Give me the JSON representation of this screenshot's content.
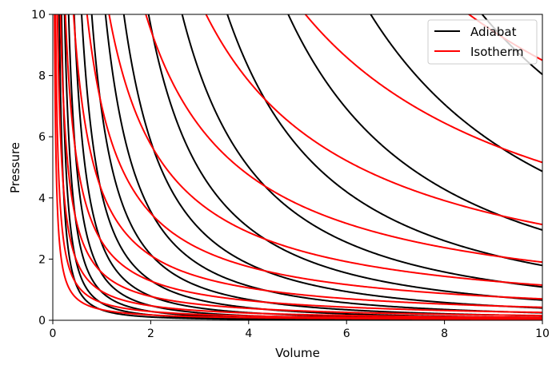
{
  "chart_data": {
    "type": "line",
    "title": "",
    "xlabel": "Volume",
    "ylabel": "Pressure",
    "xlim": [
      0,
      10
    ],
    "ylim": [
      0,
      10
    ],
    "xticks": [
      0,
      2,
      4,
      6,
      8,
      10
    ],
    "yticks": [
      0,
      2,
      4,
      6,
      8,
      10
    ],
    "grid": false,
    "legend": {
      "placement": "top-right",
      "entries": [
        {
          "label": "Adiabat",
          "color": "#000000"
        },
        {
          "label": "Isotherm",
          "color": "#ff0000"
        }
      ]
    },
    "series": [
      {
        "name": "Adiabat",
        "color": "#000000",
        "formula": "P = C / V^gamma",
        "gamma": 1.6667,
        "constants": [
          373,
          226,
          137,
          83.2,
          50.5,
          30.6,
          18.6,
          11.3,
          6.83,
          4.14,
          2.51,
          1.52,
          0.925,
          0.561,
          0.34
        ]
      },
      {
        "name": "Isotherm",
        "color": "#ff0000",
        "formula": "P = K / V",
        "gamma": 1,
        "constants": [
          85,
          51.6,
          31.3,
          19.0,
          11.5,
          7.0,
          4.24,
          2.57,
          1.56,
          0.946,
          0.574,
          0.348
        ]
      }
    ]
  }
}
